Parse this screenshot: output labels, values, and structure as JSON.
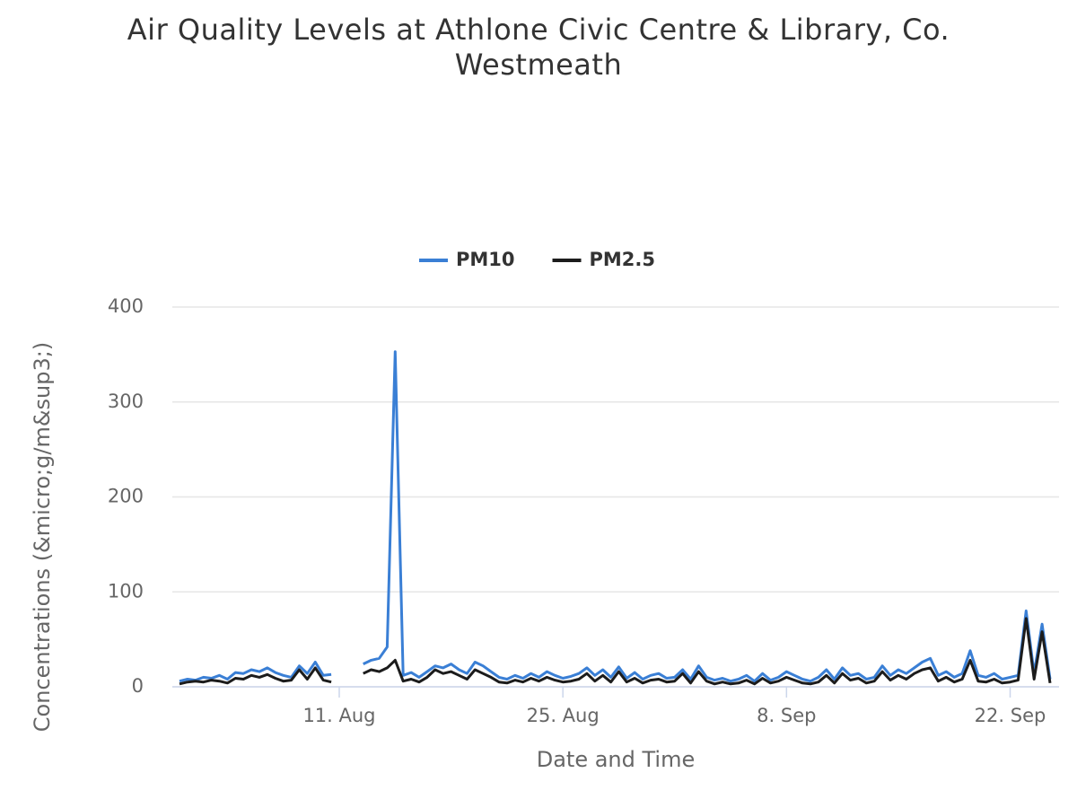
{
  "chart_data": {
    "type": "line",
    "title": "Air Quality Levels at Athlone Civic Centre & Library, Co. Westmeath",
    "x_label": "Date and Time",
    "y_label": "Concentrations (&micro;g/m&sup3;)",
    "categories": [
      null,
      null,
      null,
      null,
      null,
      null,
      null,
      null,
      null,
      null,
      null,
      null,
      null,
      null,
      null,
      null,
      null,
      null,
      null,
      null,
      "11. Aug",
      null,
      null,
      null,
      null,
      null,
      null,
      null,
      null,
      null,
      null,
      null,
      null,
      null,
      null,
      null,
      null,
      null,
      null,
      null,
      null,
      null,
      null,
      null,
      null,
      null,
      null,
      null,
      "25. Aug",
      null,
      null,
      null,
      null,
      null,
      null,
      null,
      null,
      null,
      null,
      null,
      null,
      null,
      null,
      null,
      null,
      null,
      null,
      null,
      null,
      null,
      null,
      null,
      null,
      null,
      null,
      null,
      "8. Sep",
      null,
      null,
      null,
      null,
      null,
      null,
      null,
      null,
      null,
      null,
      null,
      null,
      null,
      null,
      null,
      null,
      null,
      null,
      null,
      null,
      null,
      null,
      null,
      null,
      null,
      null,
      null,
      "22. Sep",
      null,
      null,
      null,
      null,
      null
    ],
    "series": [
      {
        "name": "PM10",
        "color": "#3a7fd5",
        "values": [
          6,
          8,
          7,
          10,
          9,
          12,
          8,
          15,
          14,
          18,
          16,
          20,
          15,
          12,
          10,
          22,
          14,
          26,
          12,
          13,
          null,
          null,
          null,
          24,
          28,
          30,
          42,
          353,
          12,
          15,
          10,
          16,
          22,
          20,
          24,
          18,
          14,
          26,
          22,
          16,
          10,
          8,
          12,
          9,
          14,
          10,
          16,
          12,
          9,
          11,
          14,
          20,
          12,
          18,
          10,
          21,
          9,
          15,
          8,
          12,
          14,
          9,
          10,
          18,
          8,
          22,
          10,
          7,
          9,
          6,
          8,
          12,
          6,
          14,
          7,
          10,
          16,
          12,
          8,
          6,
          10,
          18,
          8,
          20,
          12,
          14,
          8,
          10,
          22,
          12,
          18,
          14,
          20,
          26,
          30,
          12,
          16,
          10,
          14,
          38,
          12,
          10,
          14,
          8,
          10,
          12,
          80,
          14,
          66,
          8
        ]
      },
      {
        "name": "PM2.5",
        "color": "#1c1c1c",
        "values": [
          3,
          5,
          6,
          5,
          7,
          6,
          4,
          9,
          8,
          12,
          10,
          13,
          9,
          6,
          7,
          18,
          8,
          20,
          7,
          5,
          null,
          null,
          null,
          14,
          18,
          16,
          20,
          28,
          6,
          8,
          5,
          10,
          18,
          14,
          16,
          12,
          8,
          18,
          14,
          10,
          5,
          4,
          7,
          5,
          9,
          6,
          10,
          7,
          5,
          6,
          8,
          14,
          6,
          12,
          5,
          16,
          5,
          9,
          4,
          7,
          8,
          5,
          6,
          14,
          4,
          16,
          6,
          3,
          5,
          3,
          4,
          7,
          3,
          9,
          4,
          6,
          10,
          7,
          4,
          3,
          5,
          12,
          4,
          14,
          7,
          9,
          4,
          6,
          16,
          7,
          12,
          8,
          14,
          18,
          20,
          6,
          10,
          5,
          8,
          28,
          6,
          5,
          8,
          4,
          5,
          7,
          72,
          8,
          58,
          4
        ]
      }
    ],
    "ylim": [
      0,
      400
    ],
    "yticks": [
      0,
      100,
      200,
      300,
      400
    ],
    "grid": true,
    "legend": "top"
  }
}
